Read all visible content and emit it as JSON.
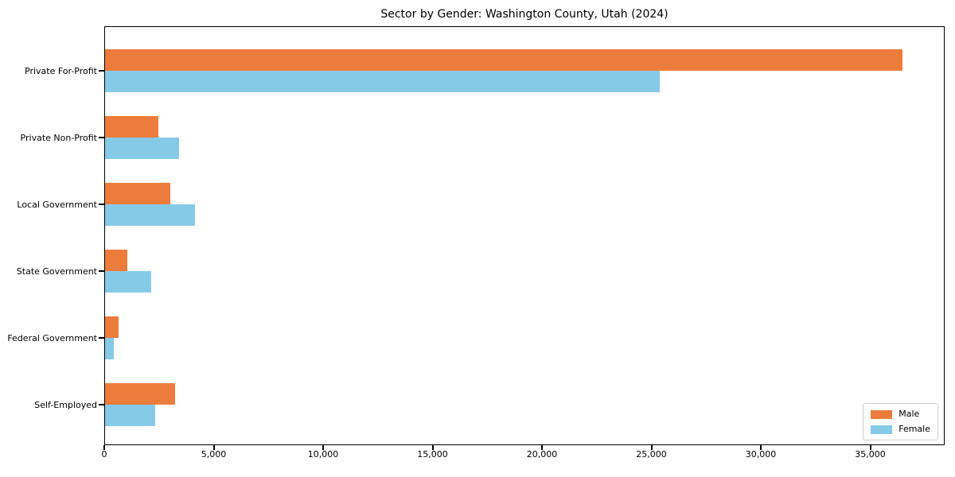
{
  "chart_data": {
    "type": "bar",
    "orientation": "horizontal",
    "title": "Sector by Gender: Washington County, Utah (2024)",
    "categories": [
      "Private For-Profit",
      "Private Non-Profit",
      "Local Government",
      "State Government",
      "Federal Government",
      "Self-Employed"
    ],
    "series": [
      {
        "name": "Male",
        "color": "#ec7c3b",
        "values": [
          36500,
          2450,
          3000,
          1030,
          630,
          3200
        ]
      },
      {
        "name": "Female",
        "color": "#85cbe8",
        "values": [
          25400,
          3400,
          4100,
          2130,
          400,
          2300
        ]
      }
    ],
    "xlim": [
      0,
      38400
    ],
    "xticks": [
      0,
      5000,
      10000,
      15000,
      20000,
      25000,
      30000,
      35000
    ],
    "xtick_labels": [
      "0",
      "5,000",
      "10,000",
      "15,000",
      "20,000",
      "25,000",
      "30,000",
      "35,000"
    ],
    "xlabel": "",
    "ylabel": "",
    "grid": false,
    "legend_position": "lower right",
    "axis_color": "#000000",
    "background_color": "#ffffff"
  }
}
